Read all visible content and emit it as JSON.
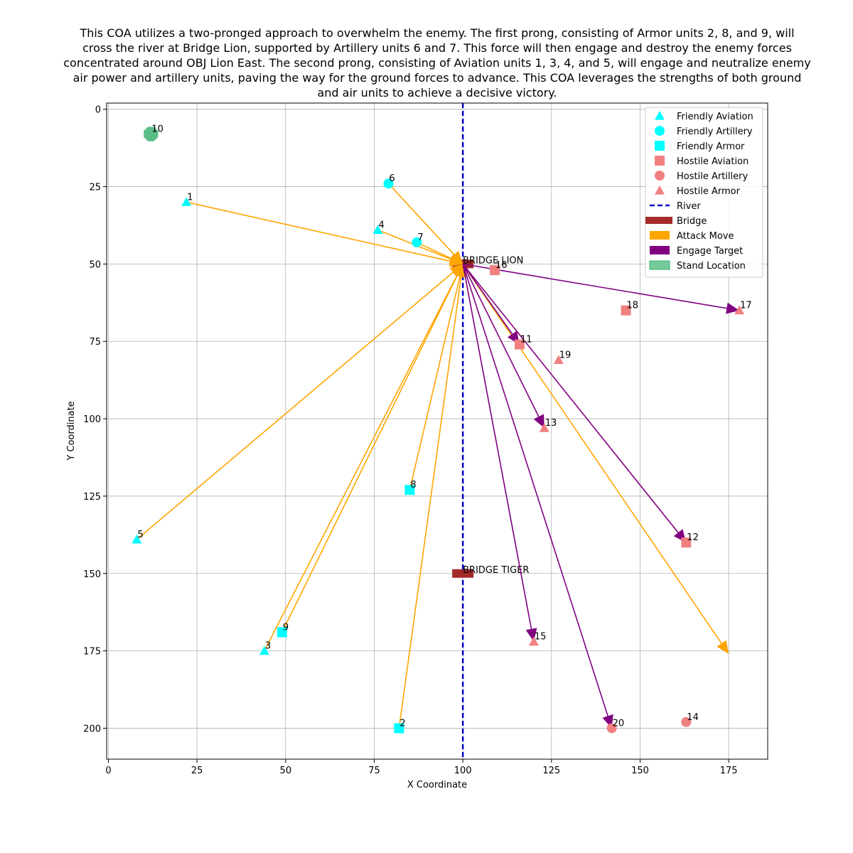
{
  "chart_data": {
    "type": "scatter",
    "title_lines": [
      "This COA utilizes a two-pronged approach to overwhelm the enemy. The first prong, consisting of Armor units 2, 8, and 9, will",
      "cross the river at Bridge Lion, supported by Artillery units 6 and 7. This force will then engage and destroy the enemy forces",
      "concentrated around OBJ Lion East. The second prong, consisting of Aviation units 1, 3, 4, and 5, will engage and neutralize enemy",
      "air power and artillery units, paving the way for the ground forces to advance. This COA leverages the strengths of both ground",
      "and air units to achieve a decisive victory."
    ],
    "xlabel": "X Coordinate",
    "ylabel": "Y Coordinate",
    "xlim": [
      -0.5,
      186
    ],
    "ylim": [
      210,
      -2
    ],
    "y_inverted": true,
    "xticks": [
      0,
      25,
      50,
      75,
      100,
      125,
      150,
      175
    ],
    "yticks": [
      0,
      25,
      50,
      75,
      100,
      125,
      150,
      175,
      200
    ],
    "grid": true,
    "colors": {
      "friendly": "#00ffff",
      "hostile": "#f08080",
      "river": "#0000cd",
      "bridge": "#a52a2a",
      "attack": "#ffa500",
      "engage": "#800080",
      "stand": "#3cb371"
    },
    "river": {
      "x": 100
    },
    "bridges": [
      {
        "name": "BRIDGE LION",
        "x": 100,
        "y": 50
      },
      {
        "name": "BRIDGE TIGER",
        "x": 100,
        "y": 150
      }
    ],
    "units": [
      {
        "id": "1",
        "side": "friendly",
        "type": "aviation",
        "x": 22,
        "y": 30
      },
      {
        "id": "2",
        "side": "friendly",
        "type": "armor",
        "x": 82,
        "y": 200
      },
      {
        "id": "3",
        "side": "friendly",
        "type": "aviation",
        "x": 44,
        "y": 175
      },
      {
        "id": "4",
        "side": "friendly",
        "type": "aviation",
        "x": 76,
        "y": 39
      },
      {
        "id": "5",
        "side": "friendly",
        "type": "aviation",
        "x": 8,
        "y": 139
      },
      {
        "id": "6",
        "side": "friendly",
        "type": "artillery",
        "x": 79,
        "y": 24
      },
      {
        "id": "7",
        "side": "friendly",
        "type": "artillery",
        "x": 87,
        "y": 43
      },
      {
        "id": "8",
        "side": "friendly",
        "type": "armor",
        "x": 85,
        "y": 123
      },
      {
        "id": "9",
        "side": "friendly",
        "type": "armor",
        "x": 49,
        "y": 169
      },
      {
        "id": "10",
        "side": "friendly",
        "type": "stand",
        "x": 12,
        "y": 8
      },
      {
        "id": "11",
        "side": "hostile",
        "type": "aviation",
        "x": 116,
        "y": 76
      },
      {
        "id": "12",
        "side": "hostile",
        "type": "aviation",
        "x": 163,
        "y": 140
      },
      {
        "id": "13",
        "side": "hostile",
        "type": "armor",
        "x": 123,
        "y": 103
      },
      {
        "id": "14",
        "side": "hostile",
        "type": "artillery",
        "x": 163,
        "y": 198
      },
      {
        "id": "15",
        "side": "hostile",
        "type": "armor",
        "x": 120,
        "y": 172
      },
      {
        "id": "16",
        "side": "hostile",
        "type": "aviation",
        "x": 109,
        "y": 52
      },
      {
        "id": "17",
        "side": "hostile",
        "type": "armor",
        "x": 178,
        "y": 65
      },
      {
        "id": "18",
        "side": "hostile",
        "type": "aviation",
        "x": 146,
        "y": 65
      },
      {
        "id": "19",
        "side": "hostile",
        "type": "armor",
        "x": 127,
        "y": 81
      },
      {
        "id": "20",
        "side": "hostile",
        "type": "artillery",
        "x": 142,
        "y": 200
      }
    ],
    "attack_moves": [
      {
        "from": [
          22,
          30
        ],
        "to": [
          100,
          50
        ]
      },
      {
        "from": [
          79,
          24
        ],
        "to": [
          100,
          50
        ]
      },
      {
        "from": [
          76,
          39
        ],
        "to": [
          100,
          50
        ]
      },
      {
        "from": [
          87,
          43
        ],
        "to": [
          100,
          50
        ]
      },
      {
        "from": [
          8,
          139
        ],
        "to": [
          100,
          50
        ]
      },
      {
        "from": [
          44,
          175
        ],
        "to": [
          100,
          50
        ]
      },
      {
        "from": [
          49,
          169
        ],
        "to": [
          100,
          50
        ]
      },
      {
        "from": [
          85,
          123
        ],
        "to": [
          100,
          50
        ]
      },
      {
        "from": [
          82,
          200
        ],
        "to": [
          100,
          50
        ]
      },
      {
        "from": [
          100,
          50
        ],
        "to": [
          175,
          176
        ]
      }
    ],
    "engage_targets": [
      {
        "from": [
          100,
          50
        ],
        "to": [
          178,
          65
        ]
      },
      {
        "from": [
          100,
          50
        ],
        "to": [
          116,
          76
        ]
      },
      {
        "from": [
          100,
          50
        ],
        "to": [
          123,
          103
        ]
      },
      {
        "from": [
          100,
          50
        ],
        "to": [
          163,
          140
        ]
      },
      {
        "from": [
          100,
          50
        ],
        "to": [
          120,
          172
        ]
      },
      {
        "from": [
          100,
          50
        ],
        "to": [
          142,
          200
        ]
      }
    ],
    "legend": {
      "placement": "top-right",
      "entries": [
        {
          "label": "Friendly Aviation",
          "kind": "triangle",
          "color": "#00ffff"
        },
        {
          "label": "Friendly Artillery",
          "kind": "circle",
          "color": "#00ffff"
        },
        {
          "label": "Friendly Armor",
          "kind": "square",
          "color": "#00ffff"
        },
        {
          "label": "Hostile Aviation",
          "kind": "square",
          "color": "#f08080"
        },
        {
          "label": "Hostile Artillery",
          "kind": "circle",
          "color": "#f08080"
        },
        {
          "label": "Hostile Armor",
          "kind": "triangle",
          "color": "#f08080"
        },
        {
          "label": "River",
          "kind": "dashed",
          "color": "#0000cd"
        },
        {
          "label": "Bridge",
          "kind": "bar",
          "color": "#a52a2a"
        },
        {
          "label": "Attack Move",
          "kind": "patch",
          "color": "#ffa500"
        },
        {
          "label": "Engage Target",
          "kind": "patch",
          "color": "#800080"
        },
        {
          "label": "Stand Location",
          "kind": "patch-light",
          "color": "#3cb371"
        }
      ]
    }
  }
}
